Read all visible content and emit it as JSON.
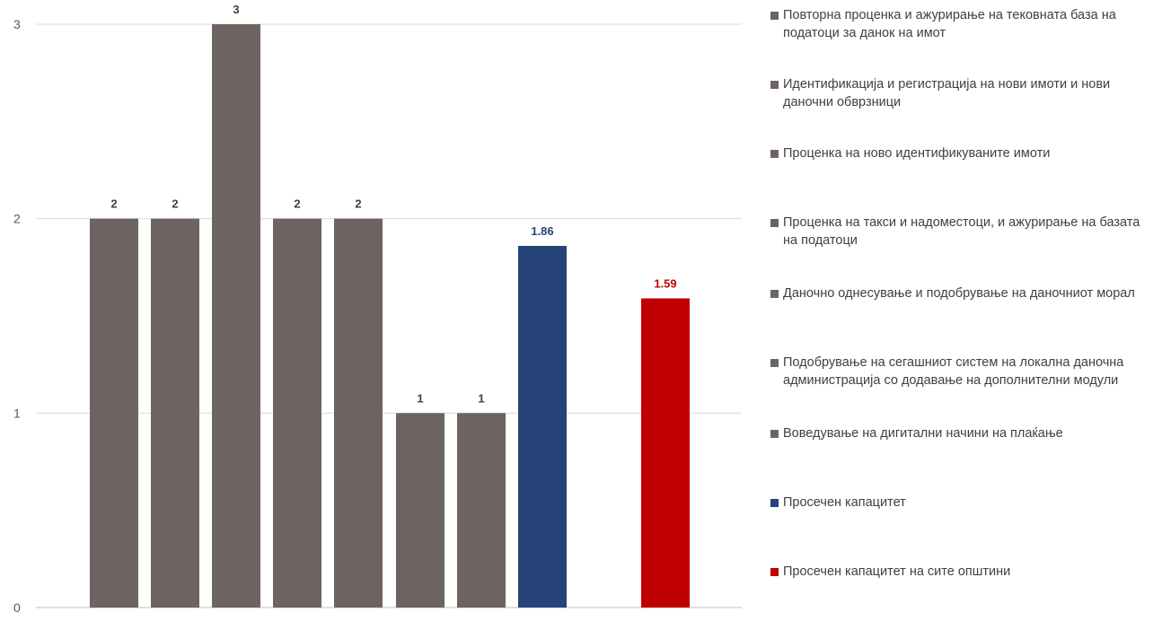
{
  "chart_data": {
    "type": "bar",
    "ylim": [
      0,
      3
    ],
    "yticks": [
      0,
      1,
      2,
      3
    ],
    "grid": true,
    "legend_position": "right",
    "series": [
      {
        "name": "Повторна проценка и ажурирање на тековната база на податоци за данок на имот",
        "value": 2,
        "label": "2",
        "color": "#6d6461"
      },
      {
        "name": "Идентификација и регистрација на нови имоти и нови даночни обврзници",
        "value": 2,
        "label": "2",
        "color": "#6d6461"
      },
      {
        "name": "Проценка на ново идентификуваните  имоти",
        "value": 3,
        "label": "3",
        "color": "#6d6461"
      },
      {
        "name": "Проценка на такси и надоместоци, и ажурирање на базата на податоци",
        "value": 2,
        "label": "2",
        "color": "#6d6461"
      },
      {
        "name": "Даночно однесување и подобрување на даночниот морал",
        "value": 2,
        "label": "2",
        "color": "#6d6461"
      },
      {
        "name": "Подобрување на сегашниот систем на локална даночна администрација со додавање на дополнителни модули",
        "value": 1,
        "label": "1",
        "color": "#6d6461"
      },
      {
        "name": "Воведување на дигитални начини на плаќање",
        "value": 1,
        "label": "1",
        "color": "#6d6461"
      },
      {
        "name": "Просечен капацитет",
        "value": 1.86,
        "label": "1.86",
        "color": "#264478"
      },
      {
        "name": "Просечен капацитет на сите општини",
        "value": 1.59,
        "label": "1.59",
        "color": "#c00000"
      }
    ]
  },
  "colors": {
    "label_default": "#404040",
    "grid": "#d9d9d9",
    "axis": "#bfbfbf"
  }
}
